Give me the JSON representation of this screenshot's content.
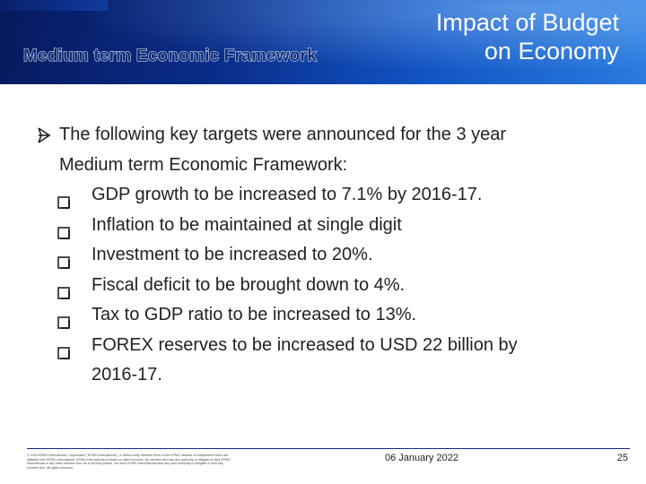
{
  "header": {
    "title_line1": "Impact of Budget",
    "title_line2": "on Economy",
    "subtitle": "Medium term Economic Framework",
    "colors": {
      "dark_blue": "#061a5e",
      "mid_blue": "#1152c2",
      "light_blue": "#2a7be0"
    }
  },
  "content": {
    "lead_icon": "arrow-bullet-icon",
    "lead_line1": "The following key targets were announced for the 3 year",
    "lead_line2": "Medium term Economic Framework:",
    "item_icon": "checkbox-bullet-icon",
    "items": [
      {
        "text": "GDP growth to be increased to 7.1% by 2016-17."
      },
      {
        "text": "Inflation to be maintained at single digit"
      },
      {
        "text": "Investment to be increased to 20%."
      },
      {
        "text": "Fiscal deficit to be brought down to 4%."
      },
      {
        "text": "Tax to GDP ratio to be increased to 13%."
      },
      {
        "text_line1": "FOREX reserves to be increased to USD 22 billion by",
        "text_line2": "2016-17."
      }
    ]
  },
  "footer": {
    "legal": "© 2016 KPMG International Cooperative (“KPMG International”), a Swiss entity. Member firms of the KPMG network of independent firms are affiliated with KPMG International. KPMG International provides no client services. No member firm has any authority to obligate or bind KPMG International or any other member firm vis-à-vis third parties, nor does KPMG International have any such authority to obligate or bind any member firm. All rights reserved.",
    "date": "06 January 2022",
    "page": "25"
  }
}
